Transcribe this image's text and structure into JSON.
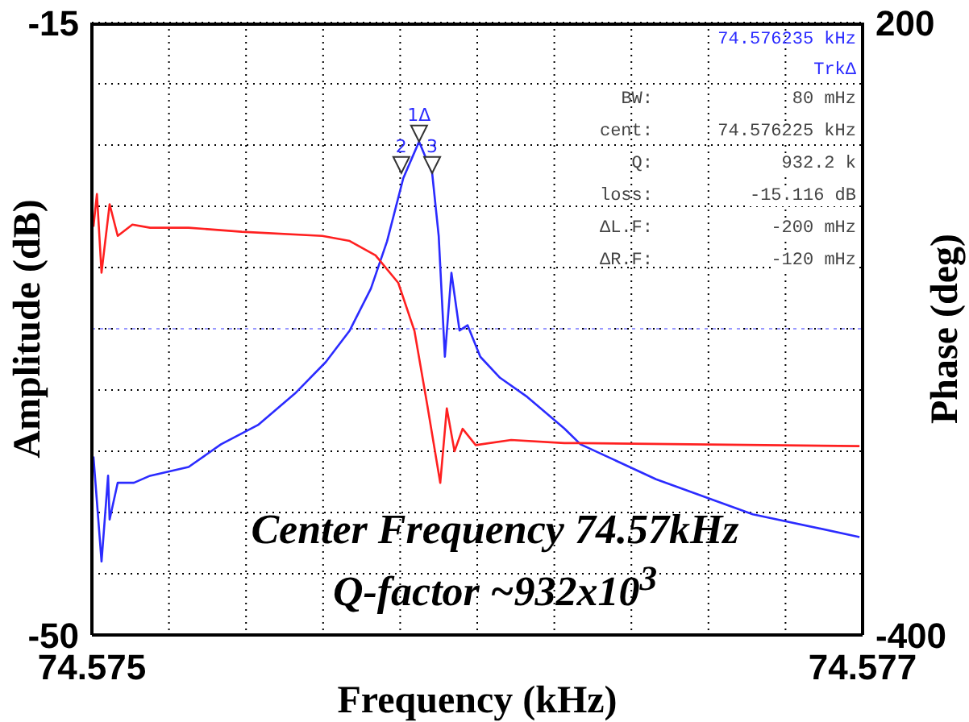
{
  "chart_data": {
    "type": "line",
    "xlabel": "Frequency (kHz)",
    "ylabel": "Amplitude (dB)",
    "y2label": "Phase (deg)",
    "xlim": [
      74.575,
      74.577
    ],
    "xticks": [
      74.575,
      {
        "value": 74.5752,
        "label": null
      },
      {
        "value": 74.5754,
        "label": null
      },
      {
        "value": 74.5756,
        "label": null
      },
      {
        "value": 74.5758,
        "label": null
      },
      {
        "value": 74.576,
        "label": null
      },
      {
        "value": 74.5762,
        "label": null
      },
      {
        "value": 74.5764,
        "label": null
      },
      {
        "value": 74.5766,
        "label": null
      },
      {
        "value": 74.5768,
        "label": null
      },
      74.577
    ],
    "ylim": [
      -50,
      -15
    ],
    "yticks": [
      -50,
      {
        "value": -46.5,
        "label": null
      },
      {
        "value": -43,
        "label": null
      },
      {
        "value": -39.5,
        "label": null
      },
      {
        "value": -36,
        "label": null
      },
      {
        "value": -32.5,
        "label": null
      },
      {
        "value": -29,
        "label": null
      },
      {
        "value": -25.5,
        "label": null
      },
      {
        "value": -22,
        "label": null
      },
      {
        "value": -18.5,
        "label": null
      },
      -15
    ],
    "y2lim": [
      -400,
      200
    ],
    "y2ticks": [
      -400,
      200
    ],
    "grid": true,
    "legend": false,
    "line_style": "solid",
    "marker": "none",
    "ref_lines": [
      {
        "axis": "y",
        "value": -32.5,
        "color": "#9999ff",
        "line_style": "dotted"
      }
    ],
    "series": [
      {
        "color": "#2b2bff",
        "x": [
          74.575004,
          74.575025,
          74.575042,
          74.575046,
          74.575067,
          74.575109,
          74.575151,
          74.575251,
          74.575335,
          74.575431,
          74.575527,
          74.575607,
          74.575669,
          74.575724,
          74.575766,
          74.575808,
          74.575849,
          74.575883,
          74.5759,
          74.575916,
          74.575933,
          74.575954,
          74.575975,
          74.576008,
          74.576059,
          74.57613,
          74.576226,
          74.576268,
          74.576464,
          74.576715,
          74.576992
        ],
        "values": [
          -39.8,
          -45.8,
          -40.9,
          -43.4,
          -41.3,
          -41.3,
          -40.9,
          -40.4,
          -39.1,
          -38.0,
          -36.2,
          -34.4,
          -32.6,
          -30.2,
          -27.5,
          -23.9,
          -21.8,
          -23.6,
          -27.2,
          -34.1,
          -29.3,
          -32.6,
          -32.3,
          -34.1,
          -35.3,
          -36.4,
          -38.2,
          -39.1,
          -41.1,
          -43.1,
          -44.4
        ]
      },
      {
        "color": "#ff2020",
        "axis": "y2",
        "x": [
          74.575004,
          74.575013,
          74.575025,
          74.575046,
          74.575067,
          74.575105,
          74.575151,
          74.575251,
          74.575389,
          74.575598,
          74.575669,
          74.575736,
          74.575795,
          74.575837,
          74.57587,
          74.575904,
          74.575921,
          74.575941,
          74.575962,
          74.575996,
          74.576088,
          74.576226,
          74.576268,
          74.576992
        ],
        "values": [
          0,
          32,
          -45,
          22,
          -9,
          2,
          -1,
          -1,
          -5,
          -9,
          -14,
          -28,
          -55,
          -102,
          -174,
          -251,
          -178,
          -220,
          -198,
          -214,
          -209,
          -212,
          -212,
          -215
        ]
      }
    ],
    "annotations": [
      "74.576235 kHz",
      "TrkΔ",
      "BW:",
      "80 mHz",
      "cent:",
      "74.576225 kHz",
      "Q:",
      "932.2 k",
      "loss:",
      "-15.116 dB",
      "ΔL.F:",
      "-200 mHz",
      "ΔR.F:",
      "-120 mHz",
      {
        "text": "1Δ",
        "x": 74.575849,
        "y": -21.8
      },
      {
        "text": "2",
        "x": 74.575803,
        "y": -23.6
      },
      {
        "text": "3",
        "x": 74.575883,
        "y": -23.6
      },
      "Center Frequency 74.57kHz",
      "Q-factor ~932x10$^{3}$"
    ]
  }
}
